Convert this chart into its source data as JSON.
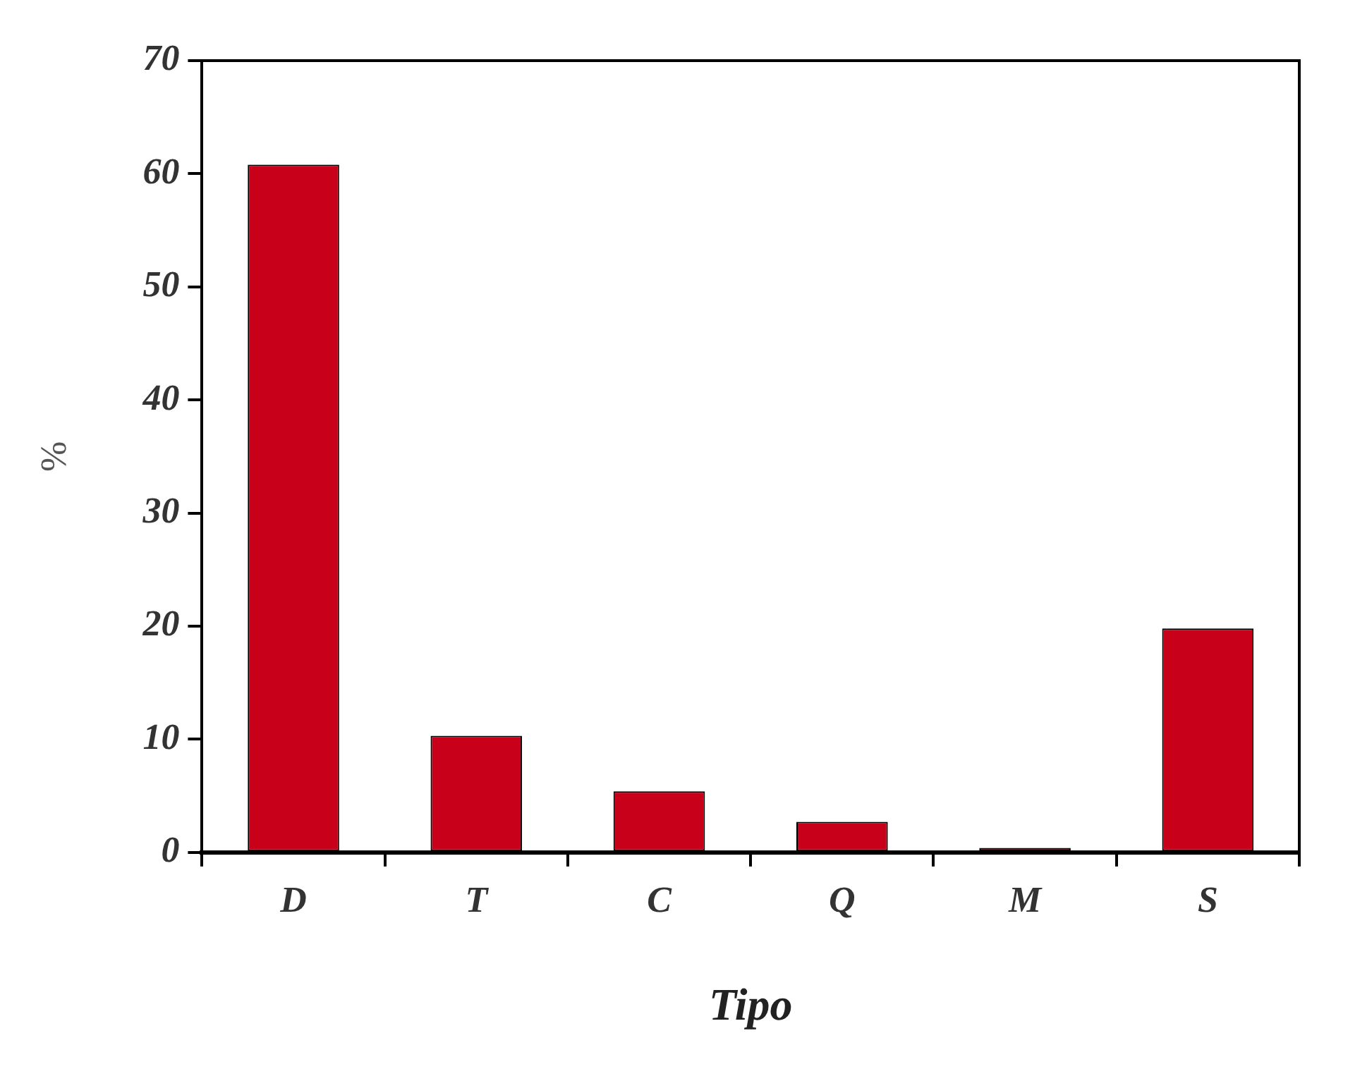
{
  "chart_data": {
    "type": "bar",
    "xlabel": "Tipo",
    "ylabel": "%",
    "categories": [
      "D",
      "T",
      "C",
      "Q",
      "M",
      "S"
    ],
    "values": [
      60.8,
      10.3,
      5.4,
      2.7,
      0.4,
      19.8
    ],
    "color": "#c8001a",
    "ylim": [
      0,
      70
    ],
    "yticks": [
      0,
      10,
      20,
      30,
      40,
      50,
      60,
      70
    ],
    "grid": false
  }
}
